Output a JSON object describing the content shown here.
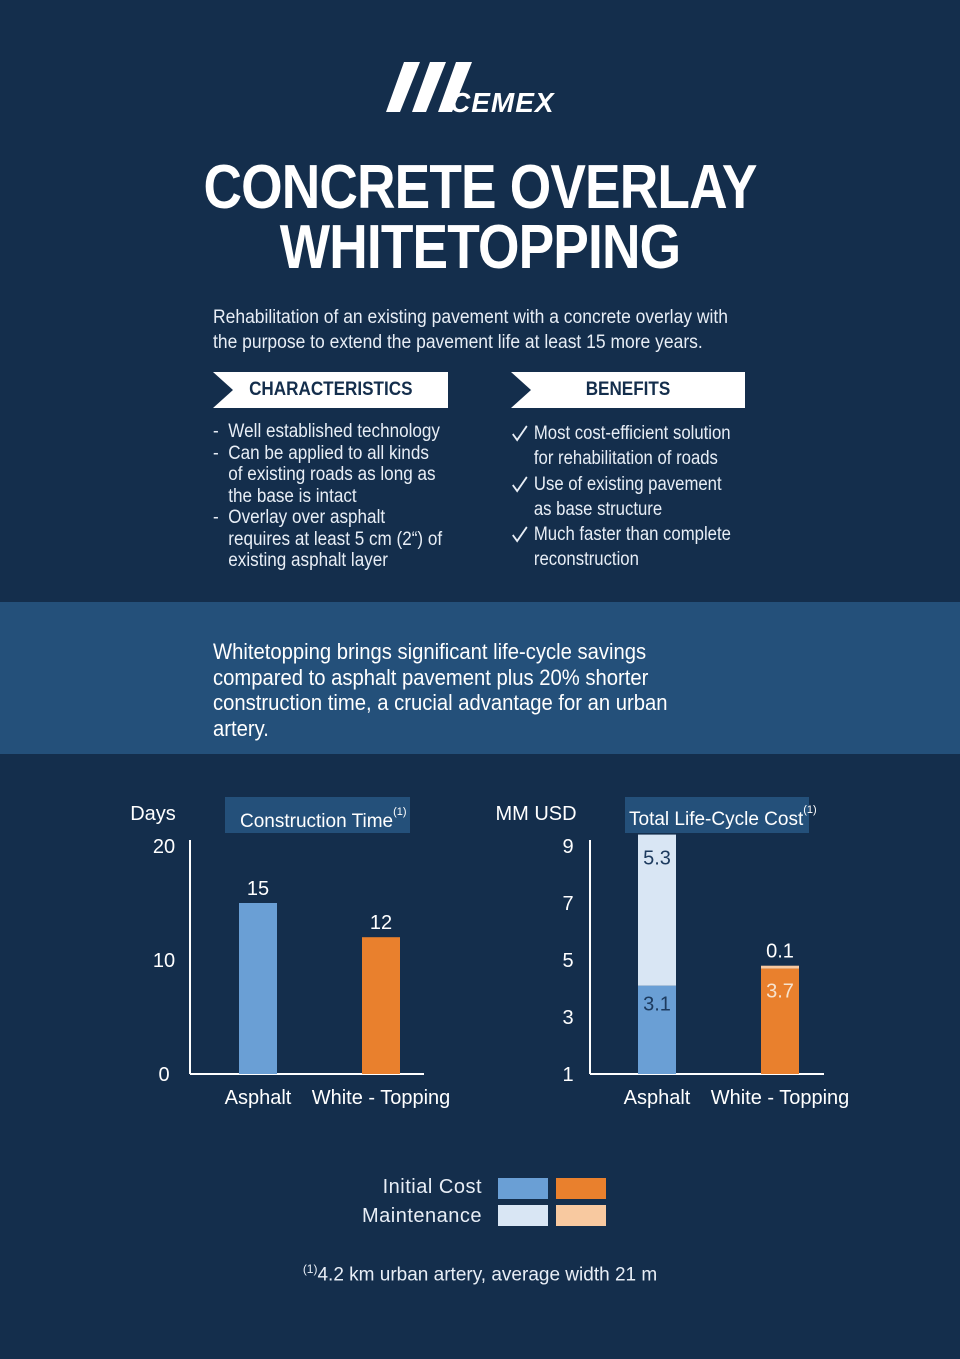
{
  "brand": {
    "logo_text": "CEMEX"
  },
  "title": {
    "line1": "CONCRETE OVERLAY",
    "line2": "WHITETOPPING"
  },
  "intro": "Rehabilitation of an existing pavement with a concrete overlay with the purpose to extend the pavement life at least 15 more years.",
  "characteristics": {
    "heading": "CHARACTERISTICS",
    "items": [
      "Well established technology",
      "Can be applied to all kinds of existing roads as long as the base is intact",
      "Overlay over asphalt requires at least 5 cm (2“) of existing asphalt layer"
    ]
  },
  "benefits": {
    "heading": "BENEFITS",
    "items": [
      "Most cost-efficient solution for rehabilitation of roads",
      "Use of existing pavement as base structure",
      "Much faster than complete reconstruction"
    ]
  },
  "highlight": "Whitetopping brings significant life-cycle savings compared to asphalt pavement plus 20% shorter construction time, a crucial advantage for an urban artery.",
  "legend": {
    "initial_cost": "Initial Cost",
    "maintenance": "Maintenance"
  },
  "footnote": {
    "marker": "(1)",
    "text": "4.2 km urban artery, average width 21 m"
  },
  "colors": {
    "background": "#142e4c",
    "band": "#24507a",
    "asphalt_initial": "#6a9fd5",
    "asphalt_maintenance": "#d9e6f4",
    "whitetopping_initial": "#e9802d",
    "whitetopping_maintenance": "#f8c9a0"
  },
  "chart_data": [
    {
      "type": "bar",
      "title": "Construction Time",
      "title_marker": "(1)",
      "ylabel": "Days",
      "categories": [
        "Asphalt",
        "White - Topping"
      ],
      "values": [
        15,
        12
      ],
      "data_labels": [
        "15",
        "12"
      ],
      "ylim": [
        0,
        20
      ],
      "yticks": [
        0,
        10,
        20
      ],
      "grid": false
    },
    {
      "type": "bar",
      "stacked": true,
      "title": "Total Life-Cycle Cost",
      "title_marker": "(1)",
      "ylabel": "MM USD",
      "categories": [
        "Asphalt",
        "White - Topping"
      ],
      "series": [
        {
          "name": "Initial Cost",
          "values": [
            3.1,
            3.7
          ]
        },
        {
          "name": "Maintenance",
          "values": [
            5.3,
            0.1
          ]
        }
      ],
      "data_labels": [
        [
          "3.1",
          "3.7"
        ],
        [
          "5.3",
          "0.1"
        ]
      ],
      "ylim": [
        1,
        9
      ],
      "yticks": [
        1,
        3,
        5,
        7,
        9
      ],
      "grid": false,
      "legend": "bottom-center"
    }
  ]
}
